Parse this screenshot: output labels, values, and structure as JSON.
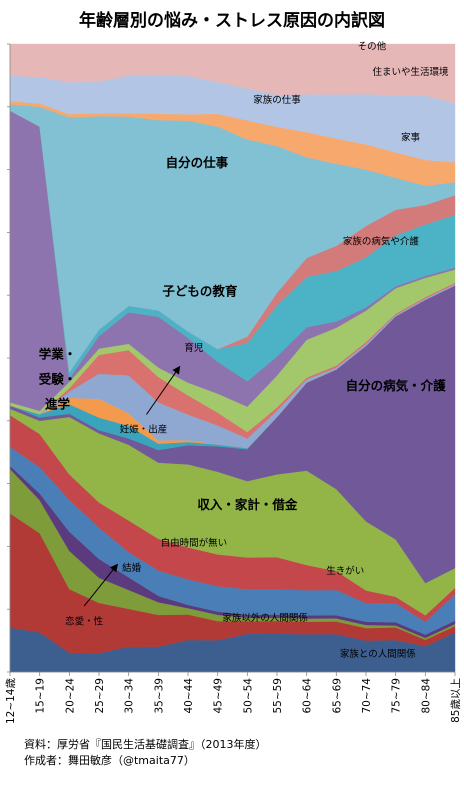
{
  "chart_data": {
    "type": "area",
    "stacked": true,
    "normalized": true,
    "title": "年齢層別の悩み・ストレス原因の内訳図",
    "categories": [
      "12~14歳",
      "15~19",
      "20~24",
      "25~29",
      "30~34",
      "35~39",
      "40~44",
      "45~49",
      "50~54",
      "55~59",
      "60~64",
      "65~69",
      "70~74",
      "75~79",
      "80~84",
      "85歳以上"
    ],
    "ylim": [
      0,
      100
    ],
    "grid": false,
    "legend": "none",
    "series": [
      {
        "name": "家族との人間関係",
        "color": "#3d5f8f",
        "values": [
          7,
          6,
          3,
          3,
          4,
          4,
          5,
          5,
          6,
          6,
          6,
          6,
          5,
          5,
          4,
          6
        ]
      },
      {
        "name": "家族以外の人間関係",
        "color": "#b23a36",
        "values": [
          18,
          15,
          10,
          8,
          6,
          5,
          4,
          3,
          2,
          2,
          2,
          2,
          2,
          2,
          1,
          1
        ]
      },
      {
        "name": "恋愛・性",
        "color": "#7e9c3a",
        "values": [
          7,
          5,
          6,
          4,
          3,
          2,
          1,
          1,
          0.5,
          0.5,
          0.5,
          0.5,
          0.5,
          0.3,
          0.3,
          0.3
        ]
      },
      {
        "name": "結婚",
        "color": "#5c3a7e",
        "values": [
          0.5,
          1,
          3,
          3,
          2,
          1,
          0.5,
          0.5,
          0.5,
          0.5,
          0.5,
          0.5,
          0.5,
          0.5,
          0.5,
          0.5
        ]
      },
      {
        "name": "生きがい",
        "color": "#4a7eb6",
        "values": [
          3,
          4,
          5,
          5,
          4,
          4,
          4,
          4,
          4,
          4,
          4,
          4,
          3,
          3,
          2,
          4
        ]
      },
      {
        "name": "自由時間が無い",
        "color": "#c4484b",
        "values": [
          5,
          5,
          4,
          4,
          5,
          5,
          5,
          5,
          5,
          5,
          4,
          3,
          2,
          1,
          1,
          1
        ]
      },
      {
        "name": "収入・家計・借金",
        "color": "#93b547",
        "values": [
          1,
          2,
          9,
          11,
          12,
          12,
          13,
          13,
          12,
          13,
          15,
          13,
          11,
          9,
          5,
          3
        ]
      },
      {
        "name": "自分の病気・介護",
        "color": "#705899",
        "values": [
          0.5,
          0.5,
          0.5,
          0.5,
          1,
          2,
          3,
          4,
          5,
          9,
          14,
          19,
          28,
          35,
          44,
          43
        ]
      },
      {
        "name": "妊娠・出産",
        "color": "#3aa4bc",
        "values": [
          0,
          0.5,
          1.5,
          2,
          2,
          1,
          0.5,
          0.3,
          0.2,
          0,
          0,
          0,
          0,
          0,
          0,
          0
        ]
      },
      {
        "name": "育児",
        "color": "#f39a4d",
        "values": [
          0,
          0,
          1,
          3,
          2,
          0.5,
          0.3,
          0,
          0,
          0,
          0,
          0,
          0,
          0,
          0,
          0
        ]
      },
      {
        "name": "子どもの教育",
        "color": "#8fa8d2",
        "values": [
          0,
          0,
          1,
          4,
          6,
          6,
          4,
          3,
          1.5,
          1,
          0.5,
          0.3,
          0.3,
          0.2,
          0.2,
          0.2
        ]
      },
      {
        "name": "子どもの教育(続)",
        "color": "#d9716e",
        "values": [
          0,
          0,
          0.5,
          3,
          4,
          4,
          3,
          2,
          1,
          0.5,
          0.3,
          0.3,
          0.3,
          0.2,
          0.2,
          0.2
        ]
      },
      {
        "name": "家族の病気や介護",
        "color": "#a3c76b",
        "values": [
          0.5,
          0.5,
          1,
          1,
          1,
          1.5,
          2,
          3,
          4,
          5,
          6,
          6,
          5,
          4,
          3,
          2
        ]
      },
      {
        "name": "学業・受験・進学",
        "color": "#8d74ae",
        "values": [
          46,
          43,
          0.5,
          2,
          5,
          8,
          7,
          5,
          4,
          3,
          2,
          1,
          0.5,
          0.3,
          0.3,
          0.3
        ]
      },
      {
        "name": "自分の仕事",
        "color": "#4cb2c6",
        "values": [
          0,
          0,
          1,
          1,
          1,
          1,
          1,
          2,
          6,
          8,
          8,
          8,
          8,
          8,
          8,
          8
        ]
      },
      {
        "name": "家族の仕事",
        "color": "#d37b7a",
        "values": [
          0,
          0,
          0,
          0,
          0,
          0,
          0,
          0,
          1,
          2,
          3,
          4,
          5,
          4,
          3,
          3
        ]
      },
      {
        "name": "住まいや生活環境",
        "color": "#82c0d4",
        "values": [
          1,
          3,
          40,
          34,
          30,
          30,
          33,
          35,
          31,
          23,
          16,
          13,
          9,
          5,
          3,
          2
        ]
      },
      {
        "name": "その他",
        "color": "#f7a86c",
        "values": [
          0.5,
          0.5,
          0.5,
          0.5,
          0.5,
          1,
          1,
          2,
          3,
          3,
          4,
          4,
          4,
          4,
          4,
          3
        ]
      },
      {
        "name": "住まいや生活環境2",
        "color": "#b3c5e4",
        "values": [
          4,
          4,
          5,
          5,
          6,
          6,
          6,
          5,
          5,
          5,
          6,
          7,
          8,
          9,
          10,
          9
        ]
      },
      {
        "name": "その他2",
        "color": "#e6b7b7",
        "values": [
          5,
          5,
          6,
          6,
          5,
          5,
          5,
          6,
          7,
          8,
          8,
          8,
          8,
          8,
          8,
          9
        ]
      }
    ],
    "labels": [
      {
        "text": "学業・",
        "x": 1.6,
        "y": 50.5
      },
      {
        "text": "受験・",
        "x": 1.6,
        "y": 46.5
      },
      {
        "text": "進学",
        "x": 1.6,
        "y": 42.5
      },
      {
        "text": "自分の仕事",
        "x": 6.3,
        "y": 81
      },
      {
        "text": "子どもの教育",
        "x": 6.4,
        "y": 60.5
      },
      {
        "text": "育児",
        "x": 6.2,
        "y": 51.5
      },
      {
        "text": "妊娠・出産",
        "x": 4.5,
        "y": 38.5
      },
      {
        "text": "収入・家計・借金",
        "x": 8.0,
        "y": 26.5
      },
      {
        "text": "自分の病気・介護",
        "x": 13.0,
        "y": 45.5
      },
      {
        "text": "家族の病気や介護",
        "x": 12.5,
        "y": 68.5
      },
      {
        "text": "家事",
        "x": 13.5,
        "y": 85
      },
      {
        "text": "家族の仕事",
        "x": 9.0,
        "y": 91
      },
      {
        "text": "住まいや生活環境",
        "x": 13.5,
        "y": 95.5
      },
      {
        "text": "その他",
        "x": 12.2,
        "y": 99.5
      },
      {
        "text": "自由時間が無い",
        "x": 6.2,
        "y": 20.5
      },
      {
        "text": "生きがい",
        "x": 11.3,
        "y": 16
      },
      {
        "text": "結婚",
        "x": 4.1,
        "y": 16.5
      },
      {
        "text": "家族以外の人間関係",
        "x": 8.6,
        "y": 8.5
      },
      {
        "text": "恋愛・性",
        "x": 2.5,
        "y": 8
      },
      {
        "text": "家族との人間関係",
        "x": 12.4,
        "y": 2.8
      }
    ]
  },
  "footer": {
    "source": "資料：厚労省『国民生活基礎調査』（2013年度）",
    "author": "作成者：舞田敏彦（@tmaita77）"
  }
}
